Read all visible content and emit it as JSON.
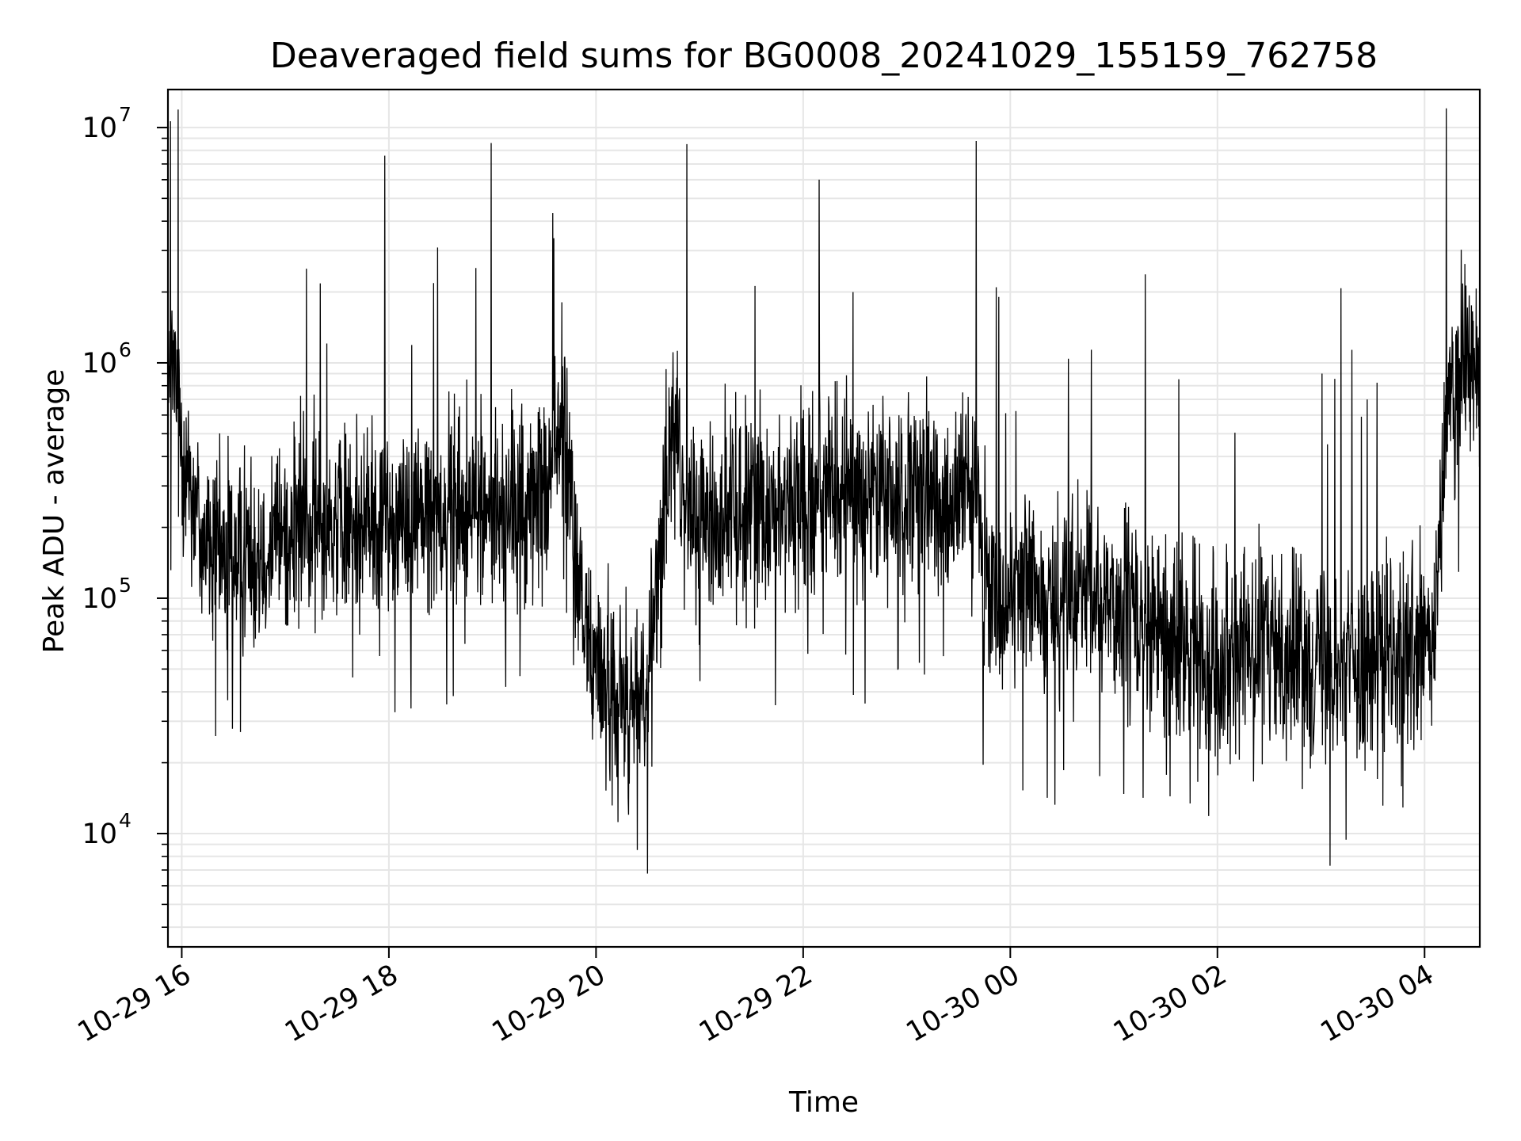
{
  "chart_data": {
    "type": "line",
    "title": "Deaveraged field sums for BG0008_20241029_155159_762758",
    "xlabel": "Time",
    "ylabel": "Peak ADU - average",
    "yscale": "log",
    "ylim": [
      3300,
      14500000
    ],
    "xlim": [
      "2024-10-29 15:52",
      "2024-10-30 04:32"
    ],
    "grid": true,
    "line_color": "#000000",
    "grid_color": "#e6e6e6",
    "x_ticks": [
      {
        "value": "2024-10-29 16:00",
        "label": "10-29 16"
      },
      {
        "value": "2024-10-29 18:00",
        "label": "10-29 18"
      },
      {
        "value": "2024-10-29 20:00",
        "label": "10-29 20"
      },
      {
        "value": "2024-10-29 22:00",
        "label": "10-29 22"
      },
      {
        "value": "2024-10-30 00:00",
        "label": "10-30 00"
      },
      {
        "value": "2024-10-30 02:00",
        "label": "10-30 02"
      },
      {
        "value": "2024-10-30 04:00",
        "label": "10-30 04"
      }
    ],
    "y_ticks": [
      {
        "value": 10000,
        "base": "10",
        "exp": "4"
      },
      {
        "value": 100000,
        "base": "10",
        "exp": "5"
      },
      {
        "value": 1000000,
        "base": "10",
        "exp": "6"
      },
      {
        "value": 10000000,
        "base": "10",
        "exp": "7"
      }
    ],
    "series": [
      {
        "values": [
          [
            "2024-10-29 15:52",
            700000
          ],
          [
            "2024-10-29 15:55",
            950000
          ],
          [
            "2024-10-29 15:58",
            600000
          ],
          [
            "2024-10-29 16:02",
            400000
          ],
          [
            "2024-10-29 16:06",
            300000
          ],
          [
            "2024-10-29 16:10",
            200000
          ],
          [
            "2024-10-29 16:20",
            150000
          ],
          [
            "2024-10-29 16:35",
            160000
          ],
          [
            "2024-10-29 16:50",
            180000
          ],
          [
            "2024-10-29 17:10",
            200000
          ],
          [
            "2024-10-29 17:30",
            210000
          ],
          [
            "2024-10-29 17:50",
            220000
          ],
          [
            "2024-10-29 18:10",
            230000
          ],
          [
            "2024-10-29 18:30",
            250000
          ],
          [
            "2024-10-29 18:50",
            240000
          ],
          [
            "2024-10-29 19:10",
            230000
          ],
          [
            "2024-10-29 19:25",
            240000
          ],
          [
            "2024-10-29 19:35",
            400000
          ],
          [
            "2024-10-29 19:40",
            600000
          ],
          [
            "2024-10-29 19:45",
            300000
          ],
          [
            "2024-10-29 19:50",
            100000
          ],
          [
            "2024-10-29 19:55",
            70000
          ],
          [
            "2024-10-29 20:00",
            50000
          ],
          [
            "2024-10-29 20:10",
            40000
          ],
          [
            "2024-10-29 20:20",
            35000
          ],
          [
            "2024-10-29 20:30",
            45000
          ],
          [
            "2024-10-29 20:35",
            100000
          ],
          [
            "2024-10-29 20:40",
            300000
          ],
          [
            "2024-10-29 20:45",
            600000
          ],
          [
            "2024-10-29 20:50",
            250000
          ],
          [
            "2024-10-29 21:00",
            200000
          ],
          [
            "2024-10-29 21:20",
            240000
          ],
          [
            "2024-10-29 21:40",
            260000
          ],
          [
            "2024-10-29 22:00",
            270000
          ],
          [
            "2024-10-29 22:20",
            280000
          ],
          [
            "2024-10-29 22:40",
            280000
          ],
          [
            "2024-10-29 23:00",
            270000
          ],
          [
            "2024-10-29 23:20",
            260000
          ],
          [
            "2024-10-29 23:35",
            280000
          ],
          [
            "2024-10-29 23:42",
            230000
          ],
          [
            "2024-10-29 23:45",
            110000
          ],
          [
            "2024-10-29 23:55",
            100000
          ],
          [
            "2024-10-30 00:10",
            110000
          ],
          [
            "2024-10-30 00:30",
            100000
          ],
          [
            "2024-10-30 00:50",
            100000
          ],
          [
            "2024-10-30 01:10",
            85000
          ],
          [
            "2024-10-30 01:30",
            65000
          ],
          [
            "2024-10-30 01:50",
            60000
          ],
          [
            "2024-10-30 02:10",
            60000
          ],
          [
            "2024-10-30 02:30",
            62000
          ],
          [
            "2024-10-30 02:50",
            58000
          ],
          [
            "2024-10-30 03:10",
            55000
          ],
          [
            "2024-10-30 03:30",
            55000
          ],
          [
            "2024-10-30 03:50",
            57000
          ],
          [
            "2024-10-30 04:05",
            60000
          ],
          [
            "2024-10-30 04:10",
            250000
          ],
          [
            "2024-10-30 04:14",
            700000
          ],
          [
            "2024-10-30 04:20",
            900000
          ],
          [
            "2024-10-30 04:26",
            1000000
          ],
          [
            "2024-10-30 04:32",
            800000
          ]
        ]
      }
    ]
  }
}
